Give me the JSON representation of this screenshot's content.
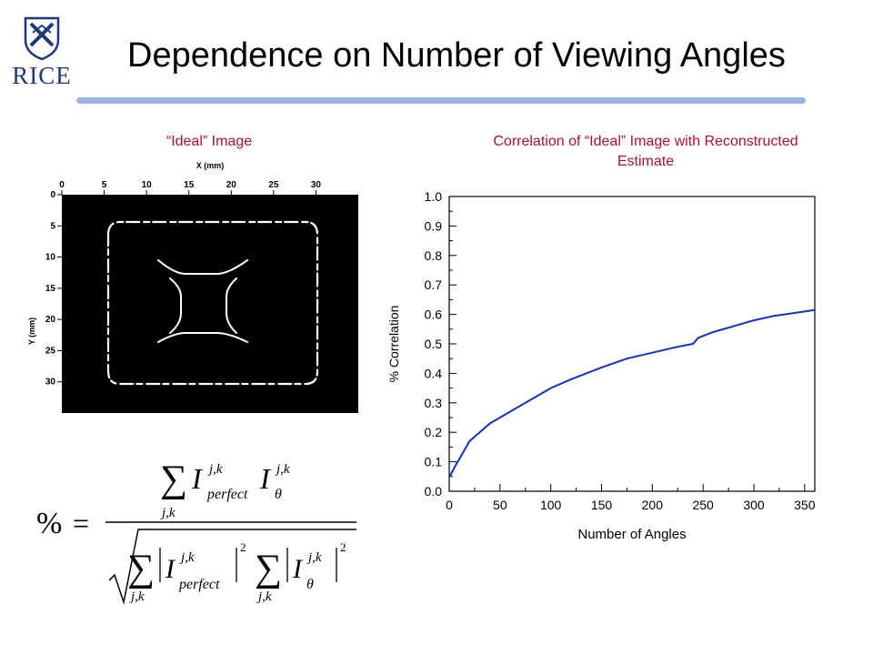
{
  "logo": {
    "text": "RICE",
    "primary_color": "#1e3a7a"
  },
  "slide": {
    "title": "Dependence on Number of Viewing Angles",
    "rule_color": "#9ab1e8",
    "caption_color": "#b0102a"
  },
  "ideal_image": {
    "caption": "“Ideal” Image",
    "x_axis_label": "X (mm)",
    "y_axis_label": "Y (mm)",
    "x_ticks": [
      "0",
      "5",
      "10",
      "15",
      "20",
      "25",
      "30"
    ],
    "y_ticks": [
      "0",
      "5",
      "10",
      "15",
      "20",
      "25",
      "30"
    ]
  },
  "chart_data": {
    "type": "line",
    "title": "Correlation of “Ideal” Image with Reconstructed Estimate",
    "xlabel": "Number of Angles",
    "ylabel": "% Correlation",
    "xlim": [
      0,
      360
    ],
    "ylim": [
      0.0,
      1.0
    ],
    "x_ticks": [
      "0",
      "50",
      "100",
      "150",
      "200",
      "250",
      "300",
      "350"
    ],
    "y_ticks": [
      "0.0",
      "0.1",
      "0.2",
      "0.3",
      "0.4",
      "0.5",
      "0.6",
      "0.7",
      "0.8",
      "0.9",
      "1.0"
    ],
    "grid": false,
    "line_color": "#1030c8",
    "series": [
      {
        "x": [
          1,
          2,
          5,
          10,
          15,
          20,
          30,
          40,
          50,
          60,
          75,
          90,
          100,
          120,
          150,
          175,
          200,
          225,
          240,
          245,
          260,
          280,
          300,
          320,
          340,
          360
        ],
        "y": [
          0.05,
          0.06,
          0.08,
          0.11,
          0.14,
          0.17,
          0.2,
          0.23,
          0.25,
          0.27,
          0.3,
          0.33,
          0.35,
          0.38,
          0.42,
          0.45,
          0.47,
          0.49,
          0.5,
          0.52,
          0.54,
          0.56,
          0.58,
          0.595,
          0.605,
          0.615
        ]
      }
    ]
  },
  "formula": {
    "lhs": "%",
    "equals": "=",
    "sum": "∑",
    "sum_index": "j,k",
    "var": "I",
    "superscript": "j,k",
    "sub_perfect": "perfect",
    "sub_theta": "θ",
    "power": "2"
  }
}
